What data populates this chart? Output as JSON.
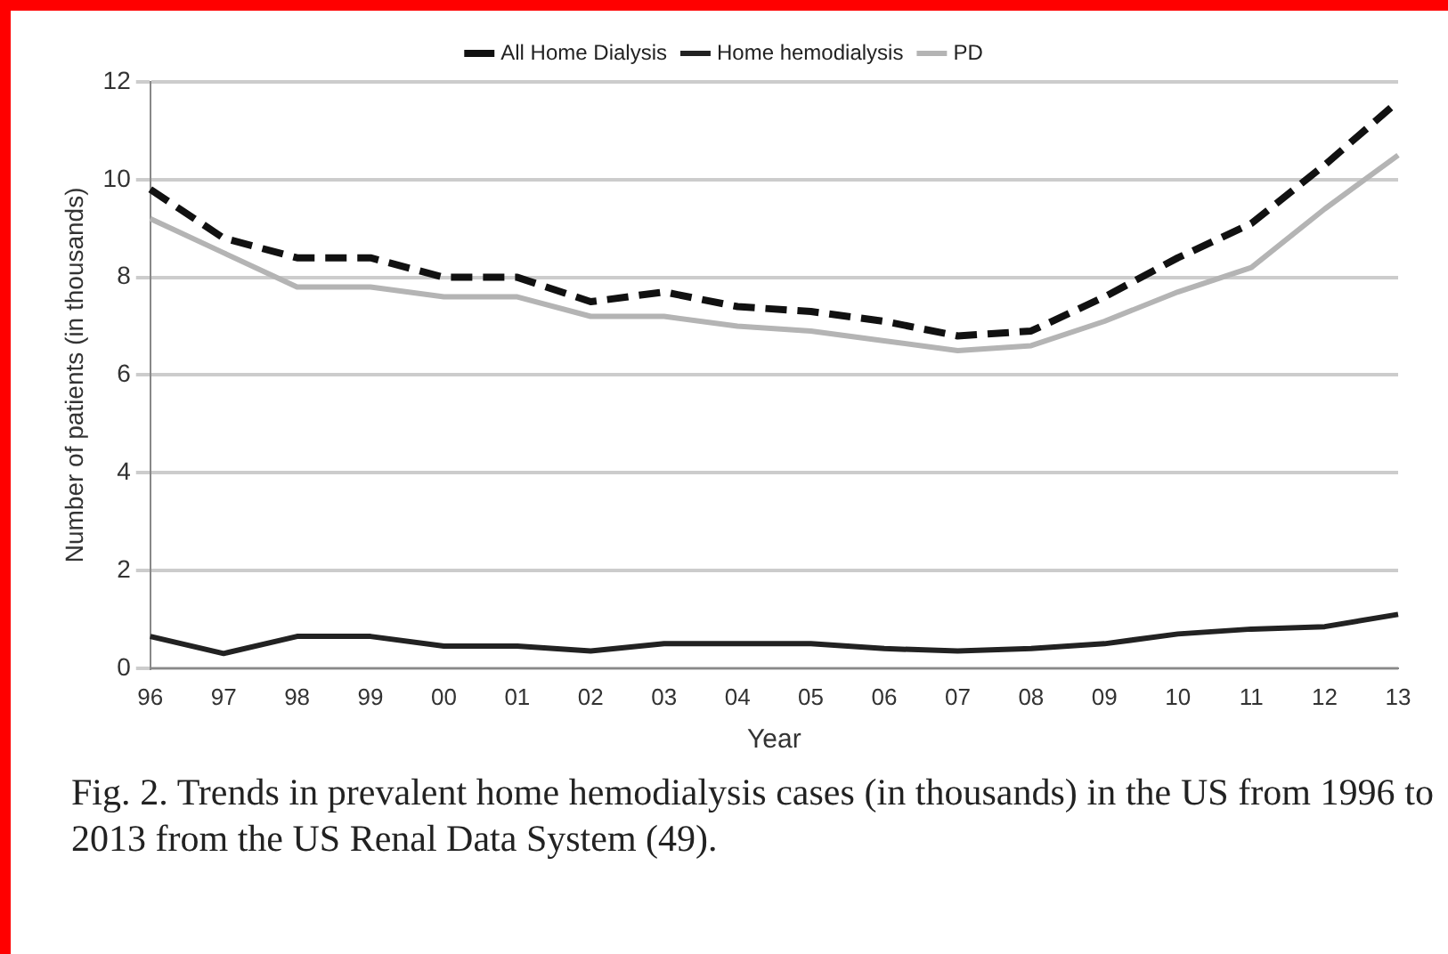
{
  "chart_data": {
    "type": "line",
    "xlabel": "Year",
    "ylabel": "Number of patients (in thousands)",
    "categories": [
      "96",
      "97",
      "98",
      "99",
      "00",
      "01",
      "02",
      "03",
      "04",
      "05",
      "06",
      "07",
      "08",
      "09",
      "10",
      "11",
      "12",
      "13"
    ],
    "series": [
      {
        "name": "All Home Dialysis",
        "color": "#111111",
        "line_style": "dashed",
        "values": [
          9.8,
          8.8,
          8.4,
          8.4,
          8.0,
          8.0,
          7.5,
          7.7,
          7.4,
          7.3,
          7.1,
          6.8,
          6.9,
          7.6,
          8.4,
          9.1,
          10.3,
          11.6
        ]
      },
      {
        "name": "Home hemodialysis",
        "color": "#222222",
        "line_style": "solid",
        "values": [
          0.65,
          0.3,
          0.65,
          0.65,
          0.45,
          0.45,
          0.35,
          0.5,
          0.5,
          0.5,
          0.4,
          0.35,
          0.4,
          0.5,
          0.7,
          0.8,
          0.85,
          1.1
        ]
      },
      {
        "name": "PD",
        "color": "#b4b4b4",
        "line_style": "solid",
        "values": [
          9.2,
          8.5,
          7.8,
          7.8,
          7.6,
          7.6,
          7.2,
          7.2,
          7.0,
          6.9,
          6.7,
          6.5,
          6.6,
          7.1,
          7.7,
          8.2,
          9.4,
          10.5
        ]
      }
    ],
    "ylim": [
      0,
      12
    ],
    "yticks": [
      0,
      2,
      4,
      6,
      8,
      10,
      12
    ],
    "grid": "y",
    "legend": "top",
    "marker": "none",
    "annotations": [
      "Fig. 2. Trends in prevalent home hemodialysis cases (in thousands) in the US from 1996 to 2013 from the US Renal Data System (49)."
    ]
  }
}
